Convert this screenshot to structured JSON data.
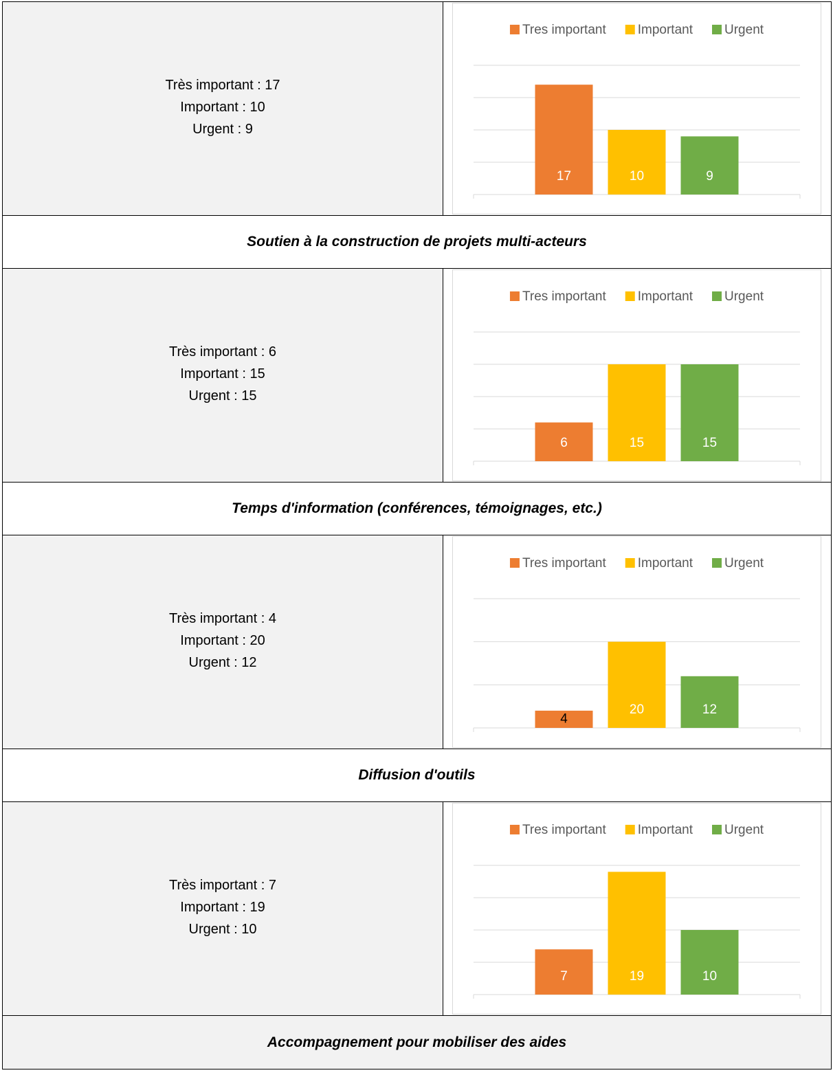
{
  "blocks": [
    {
      "summary": [
        "Très important : 17",
        "Important : 10",
        "Urgent : 9"
      ],
      "heading": "Soutien à la construction de projets multi-acteurs"
    },
    {
      "summary": [
        "Très important : 6",
        "Important : 15",
        "Urgent : 15"
      ],
      "heading": "Temps d'information (conférences, témoignages, etc.)"
    },
    {
      "summary": [
        "Très important : 4",
        "Important : 20",
        "Urgent : 12"
      ],
      "heading": "Diffusion d'outils"
    },
    {
      "summary": [
        "Très important : 7",
        "Important : 19",
        "Urgent : 10"
      ],
      "heading": "Accompagnement pour mobiliser des aides"
    }
  ],
  "chart_data": [
    {
      "type": "bar",
      "categories": [
        null
      ],
      "series": [
        {
          "name": "Tres important",
          "color": "#ed7d31",
          "values": [
            17
          ]
        },
        {
          "name": "Important",
          "color": "#ffc000",
          "values": [
            10
          ]
        },
        {
          "name": "Urgent",
          "color": "#70ad47",
          "values": [
            9
          ]
        }
      ],
      "ylim": [
        0,
        20
      ],
      "yticks": [
        0,
        5,
        10,
        15,
        20
      ],
      "grid": true,
      "legend": "top"
    },
    {
      "type": "bar",
      "categories": [
        null
      ],
      "series": [
        {
          "name": "Tres important",
          "color": "#ed7d31",
          "values": [
            6
          ]
        },
        {
          "name": "Important",
          "color": "#ffc000",
          "values": [
            15
          ]
        },
        {
          "name": "Urgent",
          "color": "#70ad47",
          "values": [
            15
          ]
        }
      ],
      "ylim": [
        0,
        20
      ],
      "yticks": [
        0,
        5,
        10,
        15,
        20
      ],
      "grid": true,
      "legend": "top"
    },
    {
      "type": "bar",
      "categories": [
        null
      ],
      "series": [
        {
          "name": "Tres important",
          "color": "#ed7d31",
          "values": [
            4
          ]
        },
        {
          "name": "Important",
          "color": "#ffc000",
          "values": [
            20
          ]
        },
        {
          "name": "Urgent",
          "color": "#70ad47",
          "values": [
            12
          ]
        }
      ],
      "ylim": [
        0,
        30
      ],
      "yticks": [
        0,
        10,
        20,
        30
      ],
      "grid": true,
      "legend": "top"
    },
    {
      "type": "bar",
      "categories": [
        null
      ],
      "series": [
        {
          "name": "Tres important",
          "color": "#ed7d31",
          "values": [
            7
          ]
        },
        {
          "name": "Important",
          "color": "#ffc000",
          "values": [
            19
          ]
        },
        {
          "name": "Urgent",
          "color": "#70ad47",
          "values": [
            10
          ]
        }
      ],
      "ylim": [
        0,
        20
      ],
      "yticks": [
        0,
        5,
        10,
        15,
        20
      ],
      "grid": true,
      "legend": "top"
    }
  ]
}
